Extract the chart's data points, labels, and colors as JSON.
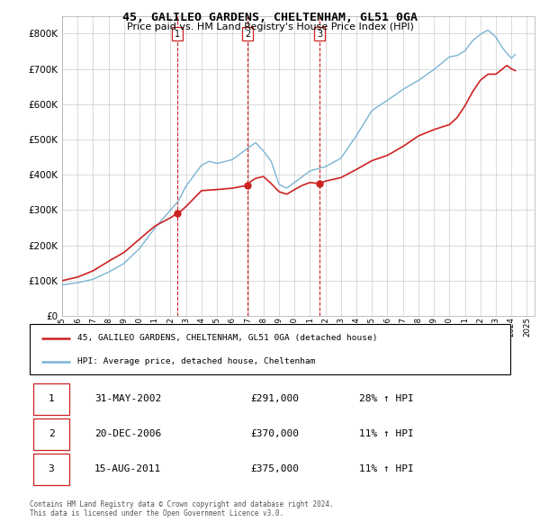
{
  "title": "45, GALILEO GARDENS, CHELTENHAM, GL51 0GA",
  "subtitle": "Price paid vs. HM Land Registry's House Price Index (HPI)",
  "ylim": [
    0,
    850000
  ],
  "yticks": [
    0,
    100000,
    200000,
    300000,
    400000,
    500000,
    600000,
    700000,
    800000
  ],
  "hpi_color": "#7ab3d4",
  "price_color": "#cc2222",
  "marker_color": "#cc2222",
  "grid_color": "#cccccc",
  "legend_label_price": "45, GALILEO GARDENS, CHELTENHAM, GL51 0GA (detached house)",
  "legend_label_hpi": "HPI: Average price, detached house, Cheltenham",
  "transactions": [
    {
      "num": 1,
      "date": "31-MAY-2002",
      "price": 291000,
      "change": "28% ↑ HPI",
      "year": 2002.42
    },
    {
      "num": 2,
      "date": "20-DEC-2006",
      "price": 370000,
      "change": "11% ↑ HPI",
      "year": 2006.97
    },
    {
      "num": 3,
      "date": "15-AUG-2011",
      "price": 375000,
      "change": "11% ↑ HPI",
      "year": 2011.62
    }
  ],
  "footnote": "Contains HM Land Registry data © Crown copyright and database right 2024.\nThis data is licensed under the Open Government Licence v3.0.",
  "xlim": [
    1995,
    2025.5
  ],
  "xtick_years": [
    1995,
    1996,
    1997,
    1998,
    1999,
    2000,
    2001,
    2002,
    2003,
    2004,
    2005,
    2006,
    2007,
    2008,
    2009,
    2010,
    2011,
    2012,
    2013,
    2014,
    2015,
    2016,
    2017,
    2018,
    2019,
    2020,
    2021,
    2022,
    2023,
    2024,
    2025
  ]
}
